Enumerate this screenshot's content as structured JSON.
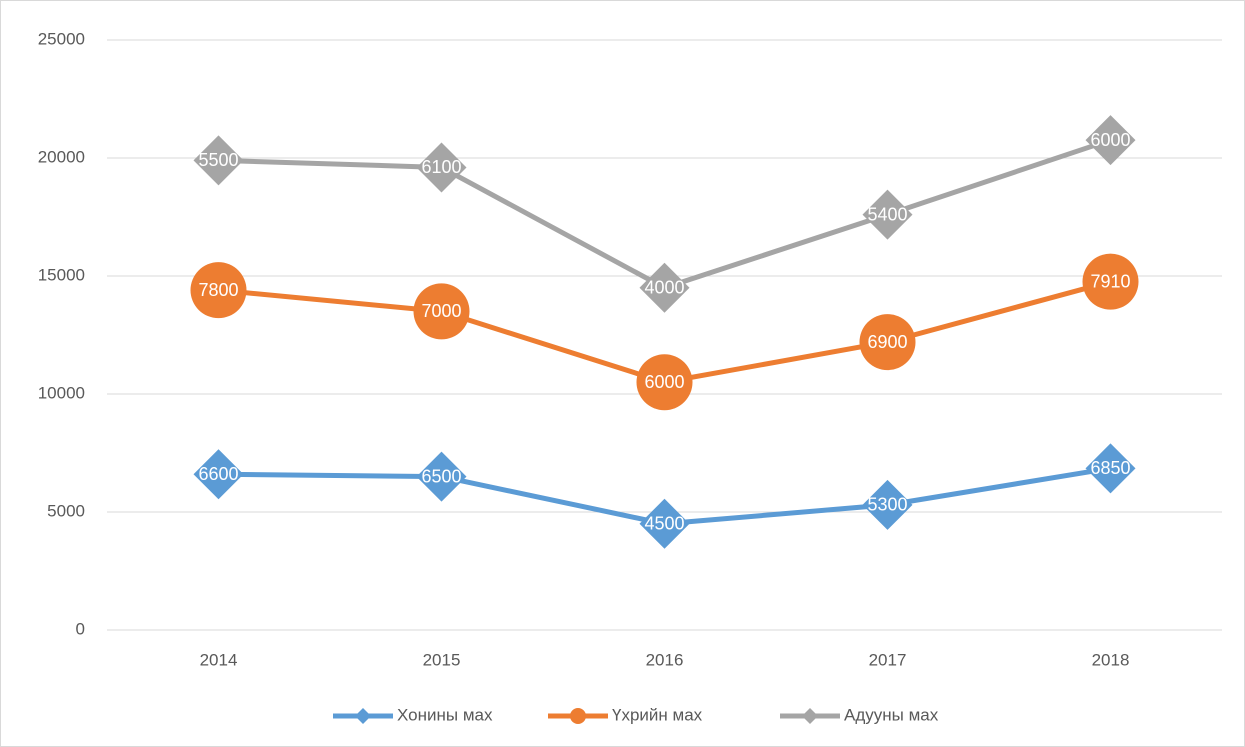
{
  "chart_data": {
    "type": "line",
    "stacked": true,
    "categories": [
      "2014",
      "2015",
      "2016",
      "2017",
      "2018"
    ],
    "series": [
      {
        "name": "Хонины мах",
        "color": "#5b9bd5",
        "marker": "diamond",
        "values": [
          6600,
          6500,
          4500,
          5300,
          6850
        ]
      },
      {
        "name": "Үхрийн мах",
        "color": "#ed7d31",
        "marker": "circle",
        "values": [
          7800,
          7000,
          6000,
          6900,
          7910
        ]
      },
      {
        "name": "Адууны мах",
        "color": "#a5a5a5",
        "marker": "diamond",
        "values": [
          5500,
          6100,
          4000,
          5400,
          6000
        ]
      }
    ],
    "ylim": [
      0,
      25000
    ],
    "yticks": [
      0,
      5000,
      10000,
      15000,
      20000,
      25000
    ],
    "grid": true,
    "legend": "bottom"
  }
}
